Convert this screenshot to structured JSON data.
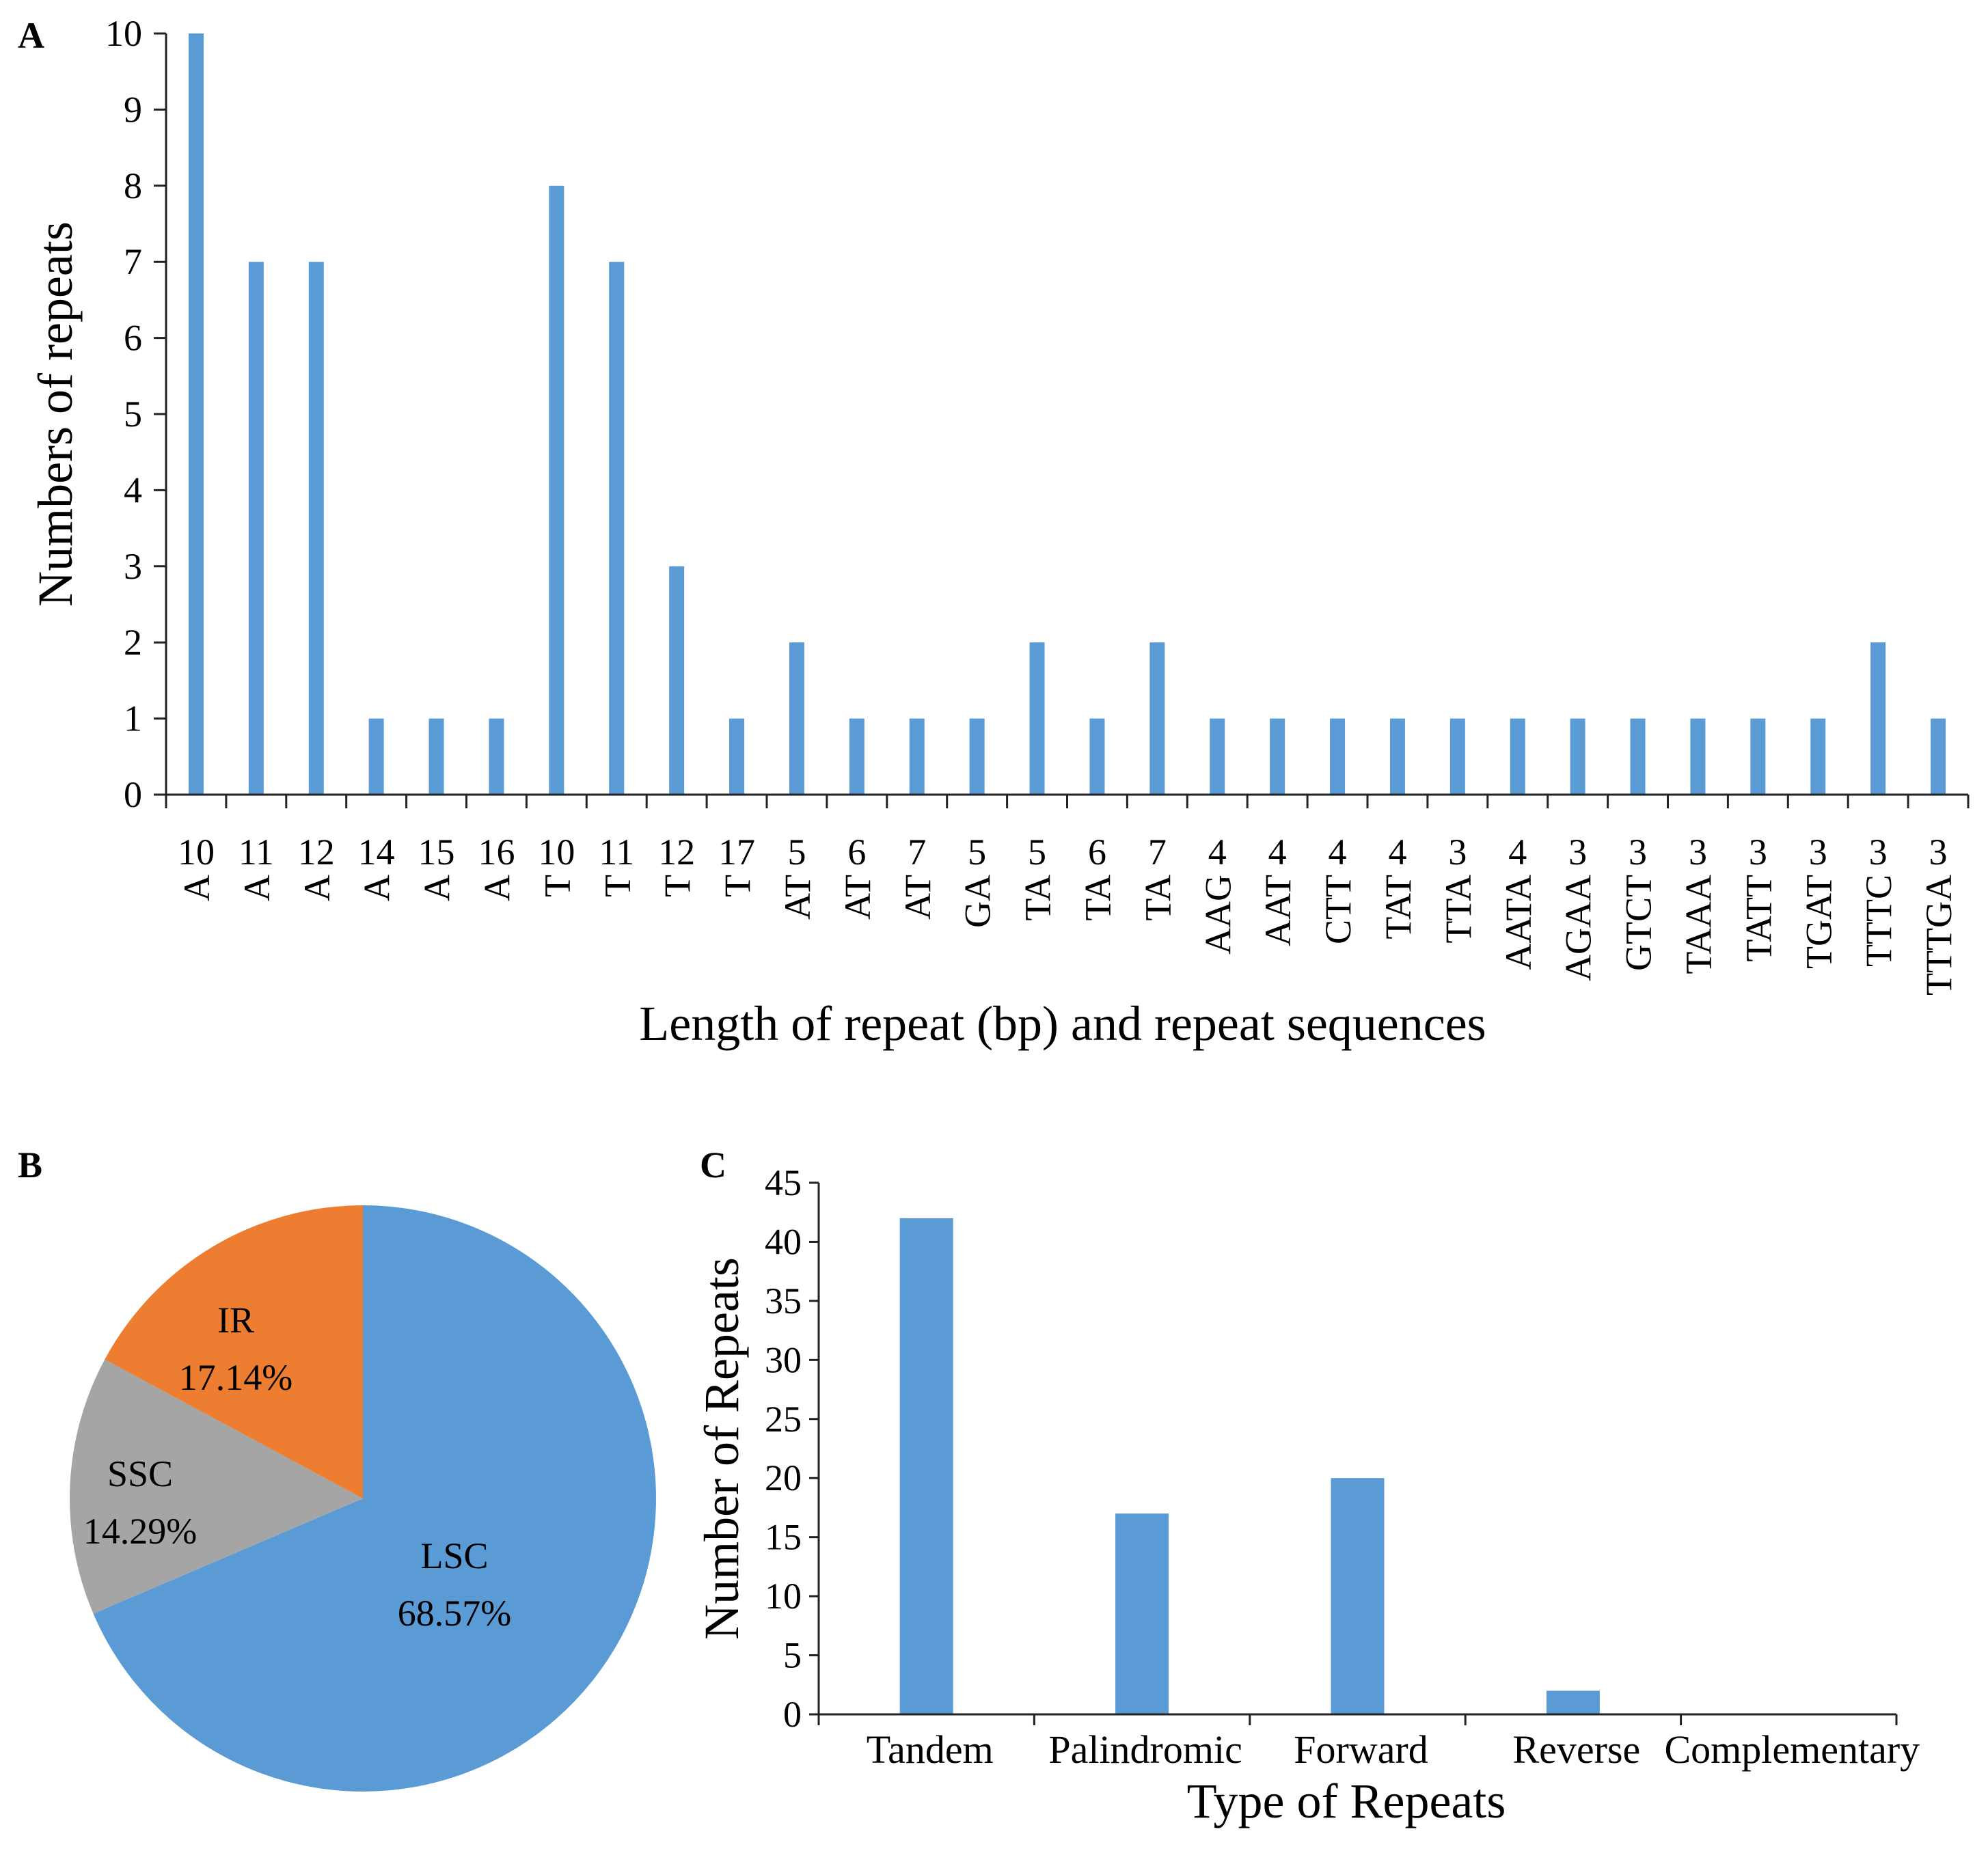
{
  "chart_data": [
    {
      "panel": "A",
      "type": "bar",
      "xlabel": "Length of repeat (bp) and repeat sequences",
      "ylabel": "Numbers of repeats",
      "ylim": [
        0,
        10
      ],
      "yticks": [
        0,
        1,
        2,
        3,
        4,
        5,
        6,
        7,
        8,
        9,
        10
      ],
      "color": "#5b9bd5",
      "categories": [
        {
          "length": "10",
          "sequence": "A"
        },
        {
          "length": "11",
          "sequence": "A"
        },
        {
          "length": "12",
          "sequence": "A"
        },
        {
          "length": "14",
          "sequence": "A"
        },
        {
          "length": "15",
          "sequence": "A"
        },
        {
          "length": "16",
          "sequence": "A"
        },
        {
          "length": "10",
          "sequence": "T"
        },
        {
          "length": "11",
          "sequence": "T"
        },
        {
          "length": "12",
          "sequence": "T"
        },
        {
          "length": "17",
          "sequence": "T"
        },
        {
          "length": "5",
          "sequence": "AT"
        },
        {
          "length": "6",
          "sequence": "AT"
        },
        {
          "length": "7",
          "sequence": "AT"
        },
        {
          "length": "5",
          "sequence": "GA"
        },
        {
          "length": "5",
          "sequence": "TA"
        },
        {
          "length": "6",
          "sequence": "TA"
        },
        {
          "length": "7",
          "sequence": "TA"
        },
        {
          "length": "4",
          "sequence": "AAG"
        },
        {
          "length": "4",
          "sequence": "AAT"
        },
        {
          "length": "4",
          "sequence": "CTT"
        },
        {
          "length": "4",
          "sequence": "TAT"
        },
        {
          "length": "3",
          "sequence": "TTA"
        },
        {
          "length": "4",
          "sequence": "AATA"
        },
        {
          "length": "3",
          "sequence": "AGAA"
        },
        {
          "length": "3",
          "sequence": "GTCT"
        },
        {
          "length": "3",
          "sequence": "TAAA"
        },
        {
          "length": "3",
          "sequence": "TATT"
        },
        {
          "length": "3",
          "sequence": "TGAT"
        },
        {
          "length": "3",
          "sequence": "TTTC"
        },
        {
          "length": "3",
          "sequence": "TTTGA"
        }
      ],
      "values": [
        10,
        7,
        7,
        1,
        1,
        1,
        8,
        7,
        3,
        1,
        2,
        1,
        1,
        1,
        2,
        1,
        2,
        1,
        1,
        1,
        1,
        1,
        1,
        1,
        1,
        1,
        1,
        1,
        2,
        1
      ]
    },
    {
      "panel": "B",
      "type": "pie",
      "slices": [
        {
          "label": "LSC",
          "value": 68.57,
          "display": "68.57%",
          "color": "#5b9bd5"
        },
        {
          "label": "SSC",
          "value": 14.29,
          "display": "14.29%",
          "color": "#a5a5a5"
        },
        {
          "label": "IR",
          "value": 17.14,
          "display": "17.14%",
          "color": "#ed7d31"
        }
      ]
    },
    {
      "panel": "C",
      "type": "bar",
      "xlabel": "Type of Repeats",
      "ylabel": "Number of Repeats",
      "ylim": [
        0,
        45
      ],
      "yticks": [
        0,
        5,
        10,
        15,
        20,
        25,
        30,
        35,
        40,
        45
      ],
      "color": "#5b9bd5",
      "categories": [
        "Tandem",
        "Palindromic",
        "Forward",
        "Reverse",
        "Complementary"
      ],
      "values": [
        42,
        17,
        20,
        2,
        0
      ]
    }
  ]
}
